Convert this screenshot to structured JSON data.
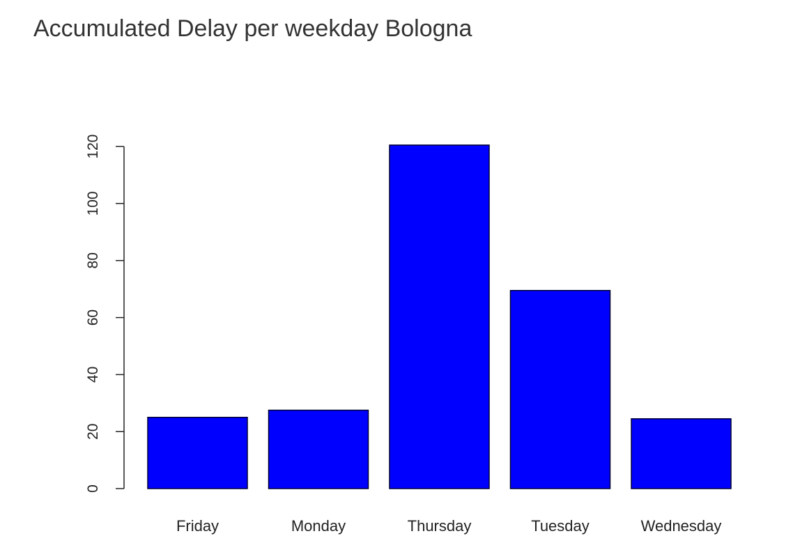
{
  "chart_data": {
    "type": "bar",
    "title": "Accumulated Delay per weekday Bologna",
    "xlabel": "",
    "ylabel": "",
    "categories": [
      "Friday",
      "Monday",
      "Thursday",
      "Tuesday",
      "Wednesday"
    ],
    "values": [
      25,
      27.5,
      120.5,
      69.5,
      24.5
    ],
    "yticks": [
      0,
      20,
      40,
      60,
      80,
      100,
      120
    ],
    "ylim": [
      0,
      120
    ],
    "grid": false,
    "legend": "none",
    "bar_color": "#0000ff",
    "bar_border_color": "#000033"
  }
}
